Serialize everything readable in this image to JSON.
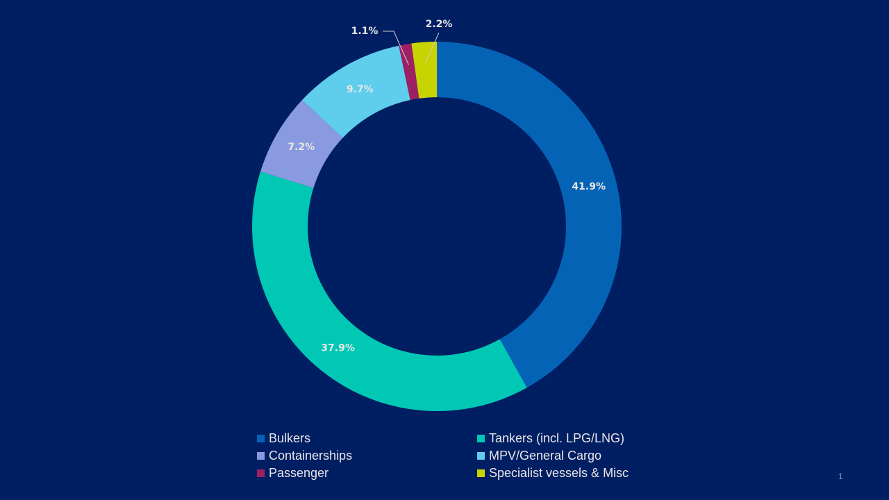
{
  "chart_data": {
    "type": "donut",
    "title": "",
    "series": [
      {
        "name": "Bulkers",
        "value": 41.9,
        "label": "41.9%",
        "color": "#0563b6"
      },
      {
        "name": "Tankers (incl. LPG/LNG)",
        "value": 37.9,
        "label": "37.9%",
        "color": "#00c8b4"
      },
      {
        "name": "Containerships",
        "value": 7.2,
        "label": "7.2%",
        "color": "#8a9ae0"
      },
      {
        "name": "MPV/General Cargo",
        "value": 9.7,
        "label": "9.7%",
        "color": "#5fcdec"
      },
      {
        "name": "Passenger",
        "value": 1.1,
        "label": "1.1%",
        "color": "#9e2064"
      },
      {
        "name": "Specialist vessels & Misc",
        "value": 2.2,
        "label": "2.2%",
        "color": "#c8d400"
      }
    ],
    "legend_position": "bottom",
    "legend_order": [
      0,
      1,
      2,
      3,
      4,
      5
    ]
  },
  "page": {
    "number": "1",
    "background": "#001e62"
  }
}
